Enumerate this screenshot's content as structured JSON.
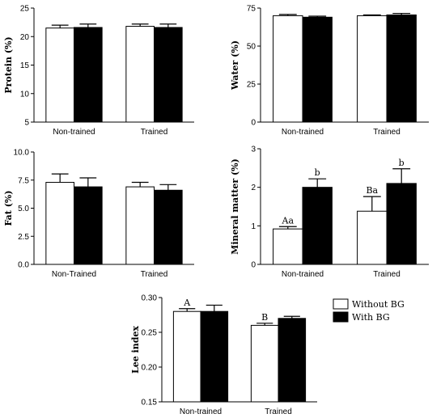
{
  "colors": {
    "without": "#ffffff",
    "with": "#000000",
    "stroke": "#000000"
  },
  "legend": {
    "items": [
      {
        "label": "Without BG",
        "color": "#ffffff"
      },
      {
        "label": "With BG",
        "color": "#000000"
      }
    ]
  },
  "chart_data": [
    {
      "id": "protein",
      "type": "bar",
      "ylabel": "Protein (%)",
      "ylim": [
        5,
        25
      ],
      "yticks": [
        5,
        10,
        15,
        20,
        25
      ],
      "categories": [
        "Non-trained",
        "Trained"
      ],
      "series": [
        {
          "name": "Without BG",
          "values": [
            21.5,
            21.8
          ],
          "errors": [
            0.5,
            0.4
          ]
        },
        {
          "name": "With BG",
          "values": [
            21.6,
            21.6
          ],
          "errors": [
            0.6,
            0.6
          ]
        }
      ],
      "annotations": []
    },
    {
      "id": "water",
      "type": "bar",
      "ylabel": "Water (%)",
      "ylim": [
        0,
        75
      ],
      "yticks": [
        0,
        25,
        50,
        75
      ],
      "categories": [
        "Non-trained",
        "Trained"
      ],
      "series": [
        {
          "name": "Without BG",
          "values": [
            70.0,
            70.0
          ],
          "errors": [
            0.8,
            0.5
          ]
        },
        {
          "name": "With BG",
          "values": [
            69.0,
            70.5
          ],
          "errors": [
            0.7,
            1.0
          ]
        }
      ],
      "annotations": []
    },
    {
      "id": "fat",
      "type": "bar",
      "ylabel": "Fat (%)",
      "ylim": [
        0,
        10
      ],
      "yticks": [
        "0.0",
        "2.5",
        "5.0",
        "7.5",
        "10.0"
      ],
      "categories": [
        "Non-Trained",
        "Trained"
      ],
      "series": [
        {
          "name": "Without BG",
          "values": [
            7.3,
            6.9
          ],
          "errors": [
            0.75,
            0.4
          ]
        },
        {
          "name": "With BG",
          "values": [
            6.9,
            6.6
          ],
          "errors": [
            0.8,
            0.5
          ]
        }
      ],
      "annotations": []
    },
    {
      "id": "mineral",
      "type": "bar",
      "ylabel": "Mineral matter (%)",
      "ylim": [
        0,
        3
      ],
      "yticks": [
        0,
        1,
        2,
        3
      ],
      "categories": [
        "Non-trained",
        "Trained"
      ],
      "series": [
        {
          "name": "Without BG",
          "values": [
            0.92,
            1.38
          ],
          "errors": [
            0.06,
            0.38
          ]
        },
        {
          "name": "With BG",
          "values": [
            2.0,
            2.1
          ],
          "errors": [
            0.22,
            0.38
          ]
        }
      ],
      "annotations": [
        [
          "Aa",
          "b"
        ],
        [
          "Ba",
          "b"
        ]
      ]
    },
    {
      "id": "lee",
      "type": "bar",
      "ylabel": "Lee index",
      "ylim": [
        0.15,
        0.3
      ],
      "yticks": [
        "0.15",
        "0.20",
        "0.25",
        "0.30"
      ],
      "categories": [
        "Non-trained",
        "Trained"
      ],
      "series": [
        {
          "name": "Without BG",
          "values": [
            0.28,
            0.26
          ],
          "errors": [
            0.004,
            0.003
          ]
        },
        {
          "name": "With BG",
          "values": [
            0.28,
            0.27
          ],
          "errors": [
            0.009,
            0.003
          ]
        }
      ],
      "annotations": [
        [
          "A",
          ""
        ],
        [
          "B",
          ""
        ]
      ]
    }
  ]
}
